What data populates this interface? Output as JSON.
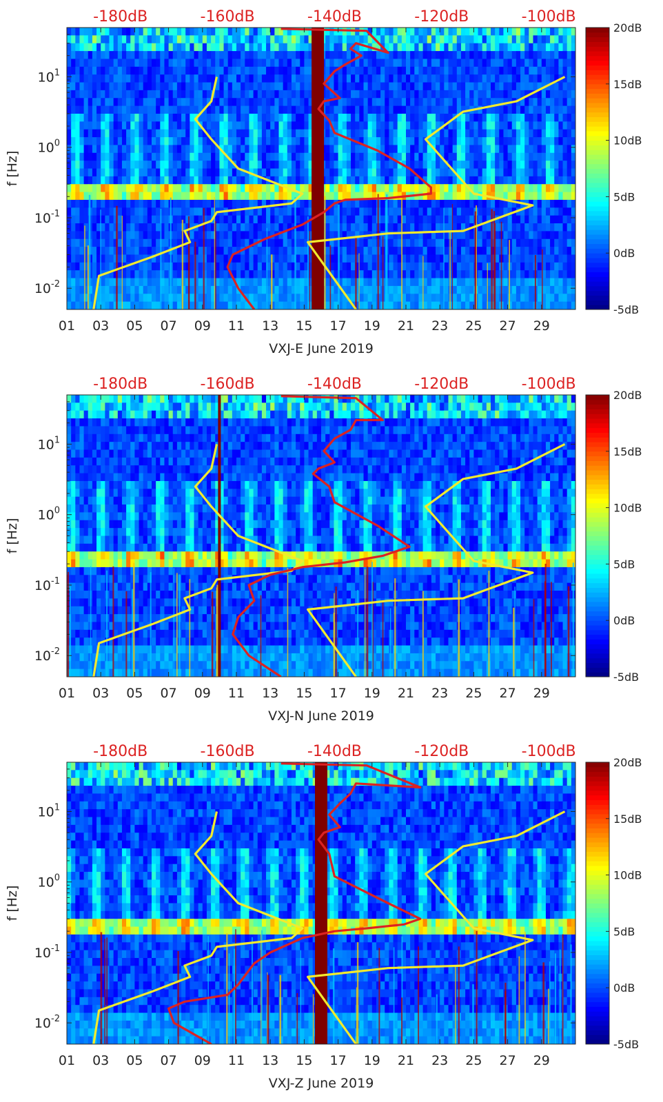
{
  "chart_data": [
    {
      "type": "heatmap",
      "xlabel": "VXJ-E June 2019",
      "ylabel": "f [Hz]",
      "x_ticks": [
        "01",
        "03",
        "05",
        "07",
        "09",
        "11",
        "13",
        "15",
        "17",
        "19",
        "21",
        "23",
        "25",
        "27",
        "29"
      ],
      "y_ticks": [
        "10^{-2}",
        "10^{-1}",
        "10^{0}",
        "10^{1}"
      ],
      "ylim": [
        0.005,
        50
      ],
      "yscale": "log",
      "top_axis_ticks": [
        "-180dB",
        "-160dB",
        "-140dB",
        "-120dB",
        "-100dB"
      ],
      "top_axis_range": [
        -190,
        -95
      ],
      "colorbar": {
        "ticks": [
          "-5dB",
          "0dB",
          "5dB",
          "10dB",
          "15dB",
          "20dB"
        ],
        "range": [
          -5,
          20
        ],
        "colormap": "jet"
      },
      "series": [
        {
          "name": "",
          "color": "#f2ea2e",
          "x": [
            -185,
            -184,
            -174,
            -167,
            -168,
            -163,
            -162,
            -148,
            -146,
            -158,
            -163,
            -166,
            -163,
            -162
          ],
          "y": [
            0.005,
            0.015,
            0.028,
            0.045,
            0.065,
            0.09,
            0.12,
            0.16,
            0.22,
            0.5,
            1.3,
            2.5,
            4.5,
            10
          ]
        },
        {
          "name": "",
          "color": "#f2ea2e",
          "x": [
            -136,
            -145,
            -130,
            -116,
            -103,
            -114,
            -123,
            -116,
            -106,
            -97
          ],
          "y": [
            0.005,
            0.045,
            0.06,
            0.065,
            0.15,
            0.22,
            1.3,
            3.2,
            4.5,
            10
          ]
        },
        {
          "name": "",
          "color": "#dc2222",
          "x": [
            -155,
            -158,
            -160,
            -159,
            -153,
            -146,
            -142,
            -140,
            -138,
            -130,
            -122,
            -122,
            -126,
            -132,
            -140,
            -141,
            -143,
            -142,
            -139,
            -142,
            -140,
            -138,
            -135,
            -137,
            -136,
            -130,
            -134,
            -150
          ],
          "y": [
            0.005,
            0.01,
            0.02,
            0.03,
            0.05,
            0.08,
            0.12,
            0.16,
            0.18,
            0.19,
            0.22,
            0.27,
            0.5,
            0.9,
            1.6,
            2.4,
            3.5,
            4.5,
            5,
            8,
            12,
            15,
            20,
            25,
            30,
            22,
            45,
            48
          ]
        }
      ],
      "band_column": {
        "x_day": 15.8,
        "color": "#7f0000"
      }
    },
    {
      "type": "heatmap",
      "xlabel": "VXJ-N June 2019",
      "ylabel": "f [Hz]",
      "x_ticks": [
        "01",
        "03",
        "05",
        "07",
        "09",
        "11",
        "13",
        "15",
        "17",
        "19",
        "21",
        "23",
        "25",
        "27",
        "29"
      ],
      "y_ticks": [
        "10^{-2}",
        "10^{-1}",
        "10^{0}",
        "10^{1}"
      ],
      "ylim": [
        0.005,
        50
      ],
      "yscale": "log",
      "top_axis_ticks": [
        "-180dB",
        "-160dB",
        "-140dB",
        "-120dB",
        "-100dB"
      ],
      "top_axis_range": [
        -190,
        -95
      ],
      "colorbar": {
        "ticks": [
          "-5dB",
          "0dB",
          "5dB",
          "10dB",
          "15dB",
          "20dB"
        ],
        "range": [
          -5,
          20
        ],
        "colormap": "jet"
      },
      "series": [
        {
          "name": "",
          "color": "#f2ea2e",
          "x": [
            -185,
            -184,
            -174,
            -167,
            -168,
            -163,
            -162,
            -148,
            -146,
            -158,
            -163,
            -166,
            -163,
            -162
          ],
          "y": [
            0.005,
            0.015,
            0.028,
            0.045,
            0.065,
            0.09,
            0.12,
            0.16,
            0.22,
            0.5,
            1.3,
            2.5,
            4.5,
            10
          ]
        },
        {
          "name": "",
          "color": "#f2ea2e",
          "x": [
            -136,
            -145,
            -130,
            -116,
            -103,
            -114,
            -123,
            -116,
            -106,
            -97
          ],
          "y": [
            0.005,
            0.045,
            0.06,
            0.065,
            0.15,
            0.22,
            1.3,
            3.2,
            4.5,
            10
          ]
        },
        {
          "name": "",
          "color": "#dc2222",
          "x": [
            -150,
            -156,
            -159,
            -158,
            -155,
            -156,
            -152,
            -146,
            -138,
            -131,
            -126,
            -132,
            -140,
            -141,
            -144,
            -143,
            -140,
            -142,
            -140,
            -137,
            -136,
            -131,
            -136,
            -150
          ],
          "y": [
            0.005,
            0.01,
            0.02,
            0.035,
            0.06,
            0.1,
            0.14,
            0.18,
            0.21,
            0.26,
            0.35,
            0.7,
            1.5,
            2.5,
            3.8,
            4.5,
            5.5,
            8,
            12,
            16,
            22,
            22,
            45,
            48
          ]
        }
      ],
      "band_column": {
        "x_day": 10.0,
        "color": "#7f0000"
      }
    },
    {
      "type": "heatmap",
      "xlabel": "VXJ-Z June 2019",
      "ylabel": "f [Hz]",
      "x_ticks": [
        "01",
        "03",
        "05",
        "07",
        "09",
        "11",
        "13",
        "15",
        "17",
        "19",
        "21",
        "23",
        "25",
        "27",
        "29"
      ],
      "y_ticks": [
        "10^{-2}",
        "10^{-1}",
        "10^{0}",
        "10^{1}"
      ],
      "ylim": [
        0.005,
        50
      ],
      "yscale": "log",
      "top_axis_ticks": [
        "-180dB",
        "-160dB",
        "-140dB",
        "-120dB",
        "-100dB"
      ],
      "top_axis_range": [
        -190,
        -95
      ],
      "colorbar": {
        "ticks": [
          "-5dB",
          "0dB",
          "5dB",
          "10dB",
          "15dB",
          "20dB"
        ],
        "range": [
          -5,
          20
        ],
        "colormap": "jet"
      },
      "series": [
        {
          "name": "",
          "color": "#f2ea2e",
          "x": [
            -185,
            -184,
            -174,
            -167,
            -168,
            -163,
            -162,
            -148,
            -146,
            -158,
            -163,
            -166,
            -163,
            -162
          ],
          "y": [
            0.005,
            0.015,
            0.028,
            0.045,
            0.065,
            0.09,
            0.12,
            0.16,
            0.22,
            0.5,
            1.3,
            2.5,
            4.5,
            10
          ]
        },
        {
          "name": "",
          "color": "#f2ea2e",
          "x": [
            -136,
            -145,
            -130,
            -116,
            -103,
            -114,
            -123,
            -116,
            -106,
            -97
          ],
          "y": [
            0.005,
            0.045,
            0.06,
            0.065,
            0.15,
            0.22,
            1.3,
            3.2,
            4.5,
            10
          ]
        },
        {
          "name": "",
          "color": "#dc2222",
          "x": [
            -163,
            -170,
            -171,
            -168,
            -160,
            -158,
            -155,
            -152,
            -146,
            -140,
            -134,
            -127,
            -124,
            -130,
            -140,
            -141,
            -143,
            -142,
            -139,
            -141,
            -139,
            -137,
            -136,
            -124,
            -134,
            -150
          ],
          "y": [
            0.005,
            0.01,
            0.016,
            0.02,
            0.025,
            0.035,
            0.07,
            0.1,
            0.16,
            0.2,
            0.22,
            0.25,
            0.3,
            0.5,
            1.2,
            2.5,
            4,
            5,
            6,
            9,
            13,
            18,
            25,
            22,
            45,
            48
          ]
        }
      ],
      "band_column": {
        "x_day": 16.0,
        "color": "#7f0000"
      }
    }
  ]
}
